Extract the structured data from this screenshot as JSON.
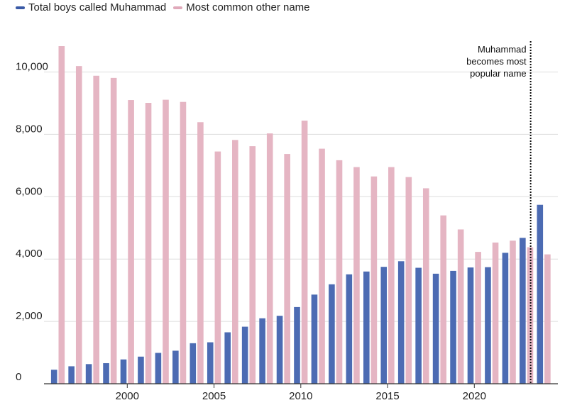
{
  "chart_data": {
    "type": "bar",
    "title": "",
    "xlabel": "",
    "ylabel": "",
    "ylim": [
      0,
      11200
    ],
    "y_ticks": [
      0,
      2000,
      4000,
      6000,
      8000,
      10000
    ],
    "y_tick_labels": [
      "0",
      "2,000",
      "4,000",
      "6,000",
      "8,000",
      "10,000"
    ],
    "x_tick_years": [
      2000,
      2005,
      2010,
      2015,
      2020
    ],
    "x_tick_labels": [
      "2000",
      "2005",
      "2010",
      "2015",
      "2020"
    ],
    "categories": [
      1996,
      1997,
      1998,
      1999,
      2000,
      2001,
      2002,
      2003,
      2004,
      2005,
      2006,
      2007,
      2008,
      2009,
      2010,
      2011,
      2012,
      2013,
      2014,
      2015,
      2016,
      2017,
      2018,
      2019,
      2020,
      2021,
      2022,
      2023,
      2024
    ],
    "series": [
      {
        "name": "Total boys called Muhammad",
        "color": "#4c6bb3",
        "values": [
          450,
          560,
          630,
          660,
          780,
          870,
          990,
          1060,
          1300,
          1330,
          1650,
          1830,
          2100,
          2180,
          2460,
          2860,
          3190,
          3510,
          3600,
          3750,
          3930,
          3720,
          3530,
          3620,
          3730,
          3740,
          4200,
          4680,
          5740
        ]
      },
      {
        "name": "Most common other name",
        "color": "#e5b5c3",
        "values": [
          10830,
          10190,
          9880,
          9810,
          9100,
          9010,
          9110,
          9040,
          8390,
          7450,
          7820,
          7620,
          8030,
          7370,
          8440,
          7540,
          7170,
          6950,
          6650,
          6950,
          6630,
          6270,
          5400,
          4950,
          4230,
          4530,
          4590,
          4380,
          4150
        ]
      }
    ],
    "legend": [
      "Total boys called Muhammad",
      "Most common other name"
    ],
    "legend_position": "top-left",
    "grid": true,
    "annotation": {
      "year": 2023,
      "lines": [
        "Muhammad",
        "becomes most",
        "popular name"
      ]
    }
  }
}
